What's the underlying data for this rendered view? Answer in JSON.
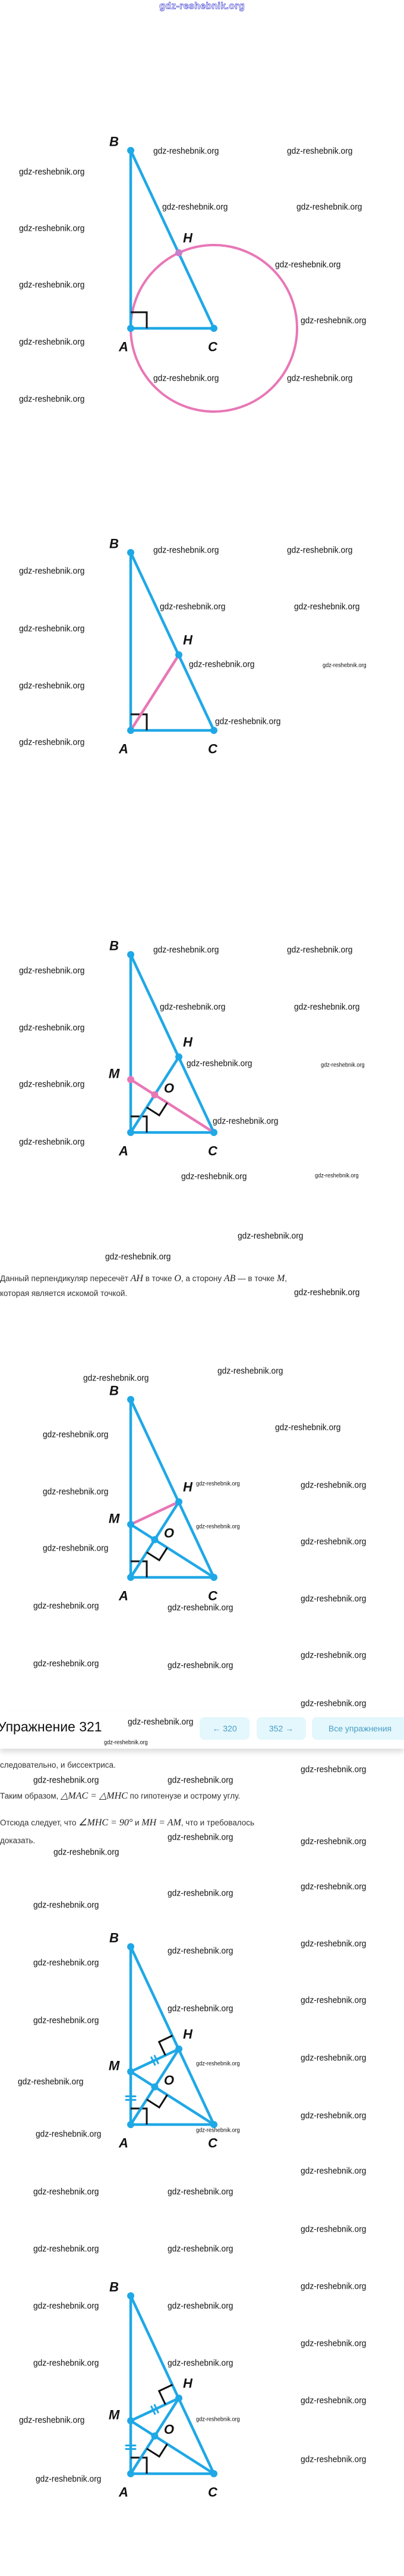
{
  "logo": "gdz-reshebnik.org",
  "watermark": "gdz-reshebnik.org",
  "colors": {
    "line_blue": "#1fa8e6",
    "highlight_pink": "#e877b6",
    "button_bg": "#e3f7fc",
    "button_text": "#4a9cc4"
  },
  "figures": [
    {
      "labels": {
        "B": "B",
        "H": "H",
        "A": "A",
        "C": "C"
      }
    },
    {
      "labels": {
        "B": "B",
        "H": "H",
        "A": "A",
        "C": "C"
      }
    },
    {
      "labels": {
        "B": "B",
        "H": "H",
        "M": "M",
        "O": "O",
        "A": "A",
        "C": "C"
      }
    },
    {
      "labels": {
        "B": "B",
        "H": "H",
        "M": "M",
        "O": "O",
        "A": "A",
        "C": "C"
      }
    },
    {
      "labels": {
        "B": "B",
        "H": "H",
        "M": "M",
        "O": "O",
        "A": "A",
        "C": "C"
      }
    },
    {
      "labels": {
        "B": "B",
        "H": "H",
        "M": "M",
        "O": "O",
        "A": "A",
        "C": "C"
      }
    }
  ],
  "text": {
    "p1": [
      "Данный перпендикуляр пересечёт ",
      "AH",
      " в точке ",
      "O",
      ", а сторону ",
      "AB",
      " — в точке ",
      "M",
      ","
    ],
    "p1b": "которая является искомой точкой.",
    "p2": "следовательно, и биссектриса.",
    "p3": [
      "Таким образом, ",
      "△MAC = △MHC",
      " по гипотенузе и острому углу."
    ],
    "p4": [
      "Отсюда следует, что ",
      "∠MHC = 90°",
      " и ",
      "MH = AM",
      ", что и требовалось"
    ],
    "p5": "доказать."
  },
  "header": {
    "title": "Упражнение 321",
    "prev_button": "← 320",
    "next_button": "352 →",
    "all_button": "Все упражнения"
  }
}
